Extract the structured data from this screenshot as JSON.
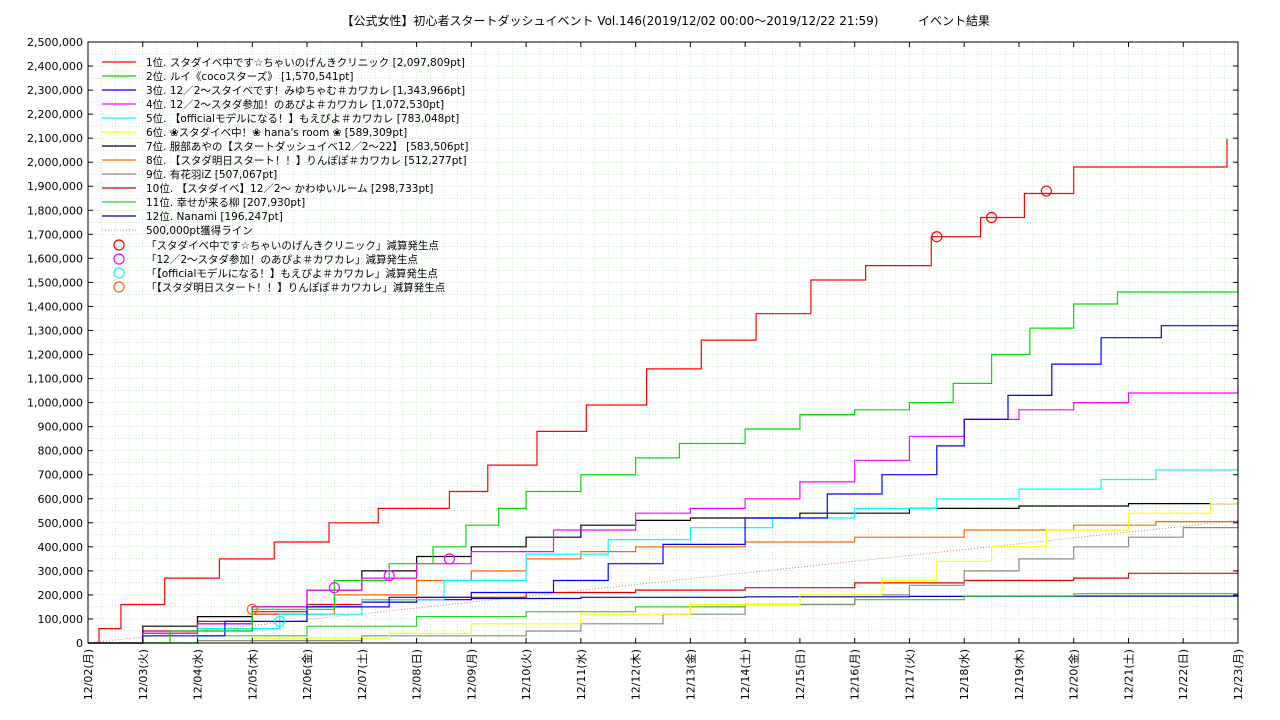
{
  "chart_data": {
    "type": "line",
    "title": "【公式女性】初心者スタートダッシュイベント Vol.146(2019/12/02 00:00〜2019/12/22 21:59)",
    "subtitle": "イベント結果",
    "xlabel": "",
    "ylabel": "",
    "x_ticks": [
      "12/02(月)",
      "12/03(火)",
      "12/04(水)",
      "12/05(木)",
      "12/06(金)",
      "12/07(土)",
      "12/08(日)",
      "12/09(月)",
      "12/10(火)",
      "12/11(水)",
      "12/12(木)",
      "12/13(金)",
      "12/14(土)",
      "12/15(日)",
      "12/16(月)",
      "12/17(火)",
      "12/18(水)",
      "12/19(木)",
      "12/20(金)",
      "12/21(土)",
      "12/22(日)",
      "12/23(月)"
    ],
    "y_ticks": [
      "0",
      "100,000",
      "200,000",
      "300,000",
      "400,000",
      "500,000",
      "600,000",
      "700,000",
      "800,000",
      "900,000",
      "1,000,000",
      "1,100,000",
      "1,200,000",
      "1,300,000",
      "1,400,000",
      "1,500,000",
      "1,600,000",
      "1,700,000",
      "1,800,000",
      "1,900,000",
      "2,000,000",
      "2,100,000",
      "2,200,000",
      "2,300,000",
      "2,400,000",
      "2,500,000"
    ],
    "xlim": [
      0,
      21
    ],
    "ylim": [
      0,
      2500000
    ],
    "grid": true,
    "legend_position": "top-left",
    "series": [
      {
        "name": "1位. スタダイベ中です☆ちゃいのげんきクリニック [2,097,809pt]",
        "color": "#ff0000",
        "values": [
          [
            0,
            0
          ],
          [
            0.2,
            60000
          ],
          [
            0.6,
            160000
          ],
          [
            1.4,
            270000
          ],
          [
            2.4,
            350000
          ],
          [
            3.4,
            420000
          ],
          [
            4.4,
            500000
          ],
          [
            5.3,
            560000
          ],
          [
            6.6,
            630000
          ],
          [
            7.3,
            740000
          ],
          [
            8.2,
            880000
          ],
          [
            9.1,
            990000
          ],
          [
            10.2,
            1140000
          ],
          [
            11.2,
            1260000
          ],
          [
            12.2,
            1370000
          ],
          [
            13.2,
            1510000
          ],
          [
            14.2,
            1570000
          ],
          [
            15.4,
            1690000
          ],
          [
            16.3,
            1770000
          ],
          [
            17.1,
            1870000
          ],
          [
            18.0,
            1980000
          ],
          [
            20.8,
            2097809
          ]
        ]
      },
      {
        "name": "2位. ルイ《cocoスターズ》 [1,570,541pt]",
        "color": "#00dd00",
        "values": [
          [
            0,
            0
          ],
          [
            1.5,
            50000
          ],
          [
            3.0,
            140000
          ],
          [
            4.5,
            260000
          ],
          [
            5.5,
            330000
          ],
          [
            6.3,
            400000
          ],
          [
            6.9,
            490000
          ],
          [
            7.5,
            560000
          ],
          [
            8.0,
            630000
          ],
          [
            9.0,
            700000
          ],
          [
            10.0,
            770000
          ],
          [
            10.8,
            830000
          ],
          [
            12.0,
            890000
          ],
          [
            13.0,
            950000
          ],
          [
            14.0,
            970000
          ],
          [
            15.0,
            1000000
          ],
          [
            15.8,
            1080000
          ],
          [
            16.5,
            1200000
          ],
          [
            17.2,
            1310000
          ],
          [
            18.0,
            1410000
          ],
          [
            18.8,
            1460000
          ],
          [
            21,
            1570541
          ]
        ]
      },
      {
        "name": "3位. 12／2〜スタイベです！みゆちゃむ＃カワカレ [1,343,966pt]",
        "color": "#0000ff",
        "values": [
          [
            0,
            0
          ],
          [
            1.0,
            30000
          ],
          [
            2.5,
            90000
          ],
          [
            4.0,
            150000
          ],
          [
            5.5,
            190000
          ],
          [
            7.0,
            210000
          ],
          [
            8.5,
            260000
          ],
          [
            9.5,
            330000
          ],
          [
            10.5,
            410000
          ],
          [
            12.0,
            520000
          ],
          [
            13.5,
            620000
          ],
          [
            14.5,
            700000
          ],
          [
            15.5,
            820000
          ],
          [
            16.0,
            930000
          ],
          [
            16.8,
            1030000
          ],
          [
            17.6,
            1160000
          ],
          [
            18.5,
            1270000
          ],
          [
            19.6,
            1320000
          ],
          [
            21,
            1343966
          ]
        ]
      },
      {
        "name": "4位. 12／2〜スタダ参加！のあぴよ＃カワカレ [1,072,530pt]",
        "color": "#ff00ff",
        "values": [
          [
            0,
            0
          ],
          [
            1.0,
            40000
          ],
          [
            2.0,
            80000
          ],
          [
            3.0,
            150000
          ],
          [
            4.0,
            220000
          ],
          [
            5.0,
            270000
          ],
          [
            6.0,
            330000
          ],
          [
            7.0,
            380000
          ],
          [
            8.5,
            470000
          ],
          [
            10.0,
            540000
          ],
          [
            11.0,
            560000
          ],
          [
            12.0,
            600000
          ],
          [
            13.0,
            670000
          ],
          [
            14.0,
            760000
          ],
          [
            15.0,
            860000
          ],
          [
            16.0,
            930000
          ],
          [
            17.0,
            970000
          ],
          [
            18.0,
            1000000
          ],
          [
            19.0,
            1040000
          ],
          [
            21,
            1072530
          ]
        ]
      },
      {
        "name": "5位. 【officialモデルになる！】もえぴよ＃カワカレ [783,048pt]",
        "color": "#00ffff",
        "values": [
          [
            0,
            0
          ],
          [
            2.0,
            60000
          ],
          [
            3.5,
            120000
          ],
          [
            5.0,
            180000
          ],
          [
            6.5,
            260000
          ],
          [
            8.0,
            370000
          ],
          [
            9.5,
            430000
          ],
          [
            11.0,
            480000
          ],
          [
            12.5,
            520000
          ],
          [
            14.0,
            560000
          ],
          [
            15.5,
            600000
          ],
          [
            17.0,
            640000
          ],
          [
            18.5,
            680000
          ],
          [
            19.5,
            720000
          ],
          [
            21,
            783048
          ]
        ]
      },
      {
        "name": "6位. ❀スタダイベ中！❀ hana's room ❀ [589,309pt]",
        "color": "#ffff00",
        "values": [
          [
            0,
            0
          ],
          [
            3.0,
            20000
          ],
          [
            5.5,
            40000
          ],
          [
            7.0,
            80000
          ],
          [
            9.0,
            120000
          ],
          [
            11.0,
            160000
          ],
          [
            13.0,
            200000
          ],
          [
            14.5,
            260000
          ],
          [
            15.5,
            340000
          ],
          [
            16.5,
            400000
          ],
          [
            17.5,
            470000
          ],
          [
            19.0,
            540000
          ],
          [
            20.5,
            580000
          ],
          [
            21,
            589309
          ]
        ]
      },
      {
        "name": "7位. 服部あやの【スタートダッシュイベ12／2〜22】 [583,506pt]",
        "color": "#000000",
        "values": [
          [
            0,
            0
          ],
          [
            1.0,
            70000
          ],
          [
            2.0,
            110000
          ],
          [
            3.0,
            150000
          ],
          [
            4.0,
            220000
          ],
          [
            5.0,
            300000
          ],
          [
            6.0,
            360000
          ],
          [
            7.0,
            400000
          ],
          [
            8.0,
            440000
          ],
          [
            9.0,
            490000
          ],
          [
            10.0,
            510000
          ],
          [
            11.0,
            520000
          ],
          [
            13.0,
            540000
          ],
          [
            15.0,
            560000
          ],
          [
            17.0,
            570000
          ],
          [
            19.0,
            580000
          ],
          [
            21,
            583506
          ]
        ]
      },
      {
        "name": "8位. 【スタダ明日スタート！！】りんぽぽ＃カワカレ [512,277pt]",
        "color": "#ff6600",
        "values": [
          [
            0,
            0
          ],
          [
            1.5,
            50000
          ],
          [
            3.0,
            120000
          ],
          [
            4.5,
            200000
          ],
          [
            6.0,
            260000
          ],
          [
            7.0,
            300000
          ],
          [
            8.0,
            350000
          ],
          [
            9.0,
            380000
          ],
          [
            10.0,
            400000
          ],
          [
            12.0,
            420000
          ],
          [
            14.0,
            440000
          ],
          [
            16.0,
            470000
          ],
          [
            18.0,
            490000
          ],
          [
            19.5,
            505000
          ],
          [
            21,
            512277
          ]
        ]
      },
      {
        "name": "9位. 有花羽iZ [507,067pt]",
        "color": "#888888",
        "values": [
          [
            0,
            0
          ],
          [
            2.0,
            10000
          ],
          [
            5.0,
            30000
          ],
          [
            8.0,
            50000
          ],
          [
            9.0,
            80000
          ],
          [
            10.5,
            120000
          ],
          [
            12.0,
            160000
          ],
          [
            14.0,
            200000
          ],
          [
            15.0,
            240000
          ],
          [
            16.0,
            300000
          ],
          [
            17.0,
            350000
          ],
          [
            18.0,
            400000
          ],
          [
            19.0,
            440000
          ],
          [
            20.0,
            480000
          ],
          [
            21,
            507067
          ]
        ]
      },
      {
        "name": "10位. 【スタダイベ】12／2〜 かわゆいルーム [298,733pt]",
        "color": "#dd0000",
        "values": [
          [
            0,
            0
          ],
          [
            1.0,
            50000
          ],
          [
            2.0,
            90000
          ],
          [
            3.0,
            130000
          ],
          [
            4.0,
            160000
          ],
          [
            5.0,
            180000
          ],
          [
            6.0,
            190000
          ],
          [
            8.0,
            210000
          ],
          [
            10.0,
            220000
          ],
          [
            12.0,
            230000
          ],
          [
            14.0,
            250000
          ],
          [
            16.0,
            260000
          ],
          [
            18.0,
            270000
          ],
          [
            19.0,
            290000
          ],
          [
            21,
            298733
          ]
        ]
      },
      {
        "name": "11位. 幸せが来る柳 [207,930pt]",
        "color": "#33cc33",
        "values": [
          [
            0,
            0
          ],
          [
            2.0,
            30000
          ],
          [
            4.0,
            70000
          ],
          [
            6.0,
            110000
          ],
          [
            8.0,
            130000
          ],
          [
            10.0,
            150000
          ],
          [
            12.0,
            160000
          ],
          [
            14.0,
            180000
          ],
          [
            16.0,
            195000
          ],
          [
            18.0,
            205000
          ],
          [
            21,
            207930
          ]
        ]
      },
      {
        "name": "12位. Nanami [196,247pt]",
        "color": "#0000aa",
        "values": [
          [
            0,
            0
          ],
          [
            1.0,
            40000
          ],
          [
            2.0,
            80000
          ],
          [
            3.0,
            120000
          ],
          [
            4.0,
            150000
          ],
          [
            5.0,
            170000
          ],
          [
            6.0,
            180000
          ],
          [
            7.0,
            185000
          ],
          [
            9.0,
            190000
          ],
          [
            12.0,
            192000
          ],
          [
            15.0,
            194000
          ],
          [
            18.0,
            195000
          ],
          [
            21,
            196247
          ]
        ]
      }
    ],
    "reference_line": {
      "name": "500,000pt獲得ライン",
      "color": "#d08080",
      "values": [
        [
          0,
          0
        ],
        [
          21,
          510000
        ]
      ]
    },
    "markers": [
      {
        "name": "「スタダイベ中です☆ちゃいのげんきクリニック」減算発生点",
        "color": "#ff0000",
        "points": [
          [
            15.5,
            1690000
          ],
          [
            16.5,
            1770000
          ],
          [
            17.5,
            1880000
          ]
        ]
      },
      {
        "name": "「12／2〜スタダ参加！のあぴよ＃カワカレ」減算発生点",
        "color": "#ff00ff",
        "points": [
          [
            4.5,
            230000
          ],
          [
            5.5,
            280000
          ],
          [
            6.6,
            350000
          ]
        ]
      },
      {
        "name": "「【officialモデルになる！】もえぴよ＃カワカレ」減算発生点",
        "color": "#00ffff",
        "points": [
          [
            3.5,
            90000
          ]
        ]
      },
      {
        "name": "「【スタダ明日スタート！！】りんぽぽ＃カワカレ」減算発生点",
        "color": "#ff6600",
        "points": [
          [
            3.0,
            140000
          ]
        ]
      }
    ]
  }
}
